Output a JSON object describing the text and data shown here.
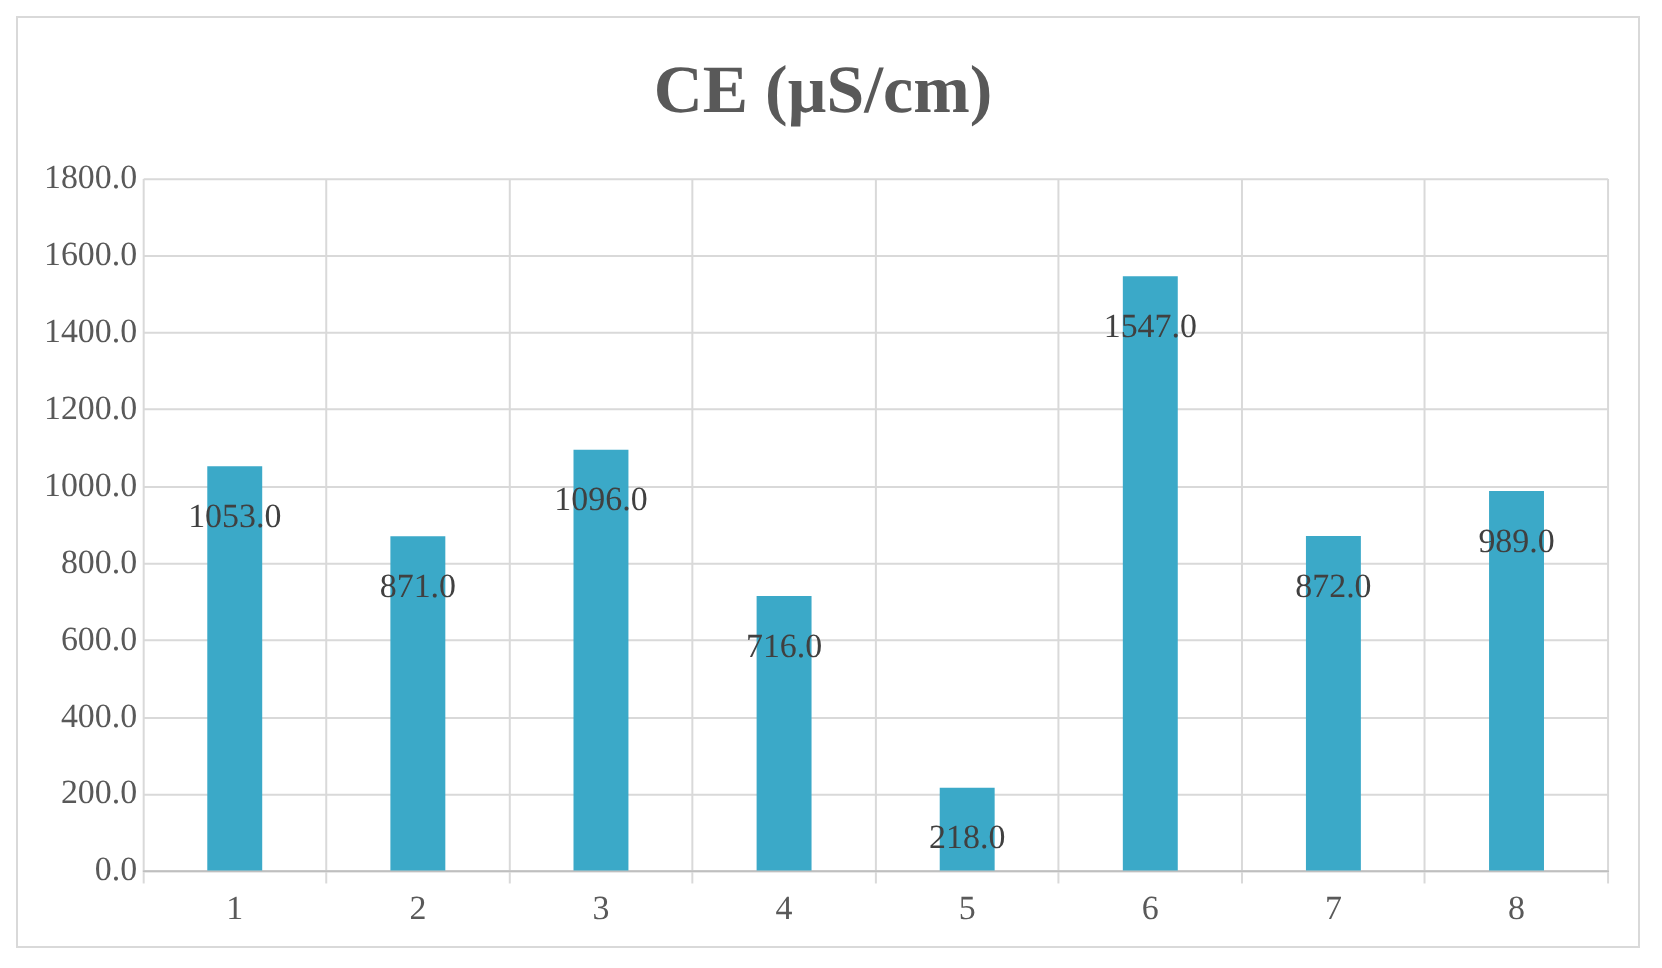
{
  "chart_data": {
    "type": "bar",
    "title": "CE (µS/cm)",
    "categories": [
      "1",
      "2",
      "3",
      "4",
      "5",
      "6",
      "7",
      "8"
    ],
    "values": [
      1053,
      871,
      1096,
      716,
      218,
      1547,
      872,
      989
    ],
    "value_labels": [
      "1053.0",
      "871.0",
      "1096.0",
      "716.0",
      "218.0",
      "1547.0",
      "872.0",
      "989.0"
    ],
    "color": "#3ba9c8",
    "ylim": [
      0,
      1800
    ],
    "yticks": [
      {
        "value": 0,
        "label": "0.0"
      },
      {
        "value": 200,
        "label": "200.0"
      },
      {
        "value": 400,
        "label": "400.0"
      },
      {
        "value": 600,
        "label": "600.0"
      },
      {
        "value": 800,
        "label": "800.0"
      },
      {
        "value": 1000,
        "label": "1000.0"
      },
      {
        "value": 1200,
        "label": "1200.0"
      },
      {
        "value": 1400,
        "label": "1400.0"
      },
      {
        "value": 1600,
        "label": "1600.0"
      },
      {
        "value": 1800,
        "label": "1800.0"
      }
    ],
    "grid": true,
    "legend": false
  }
}
